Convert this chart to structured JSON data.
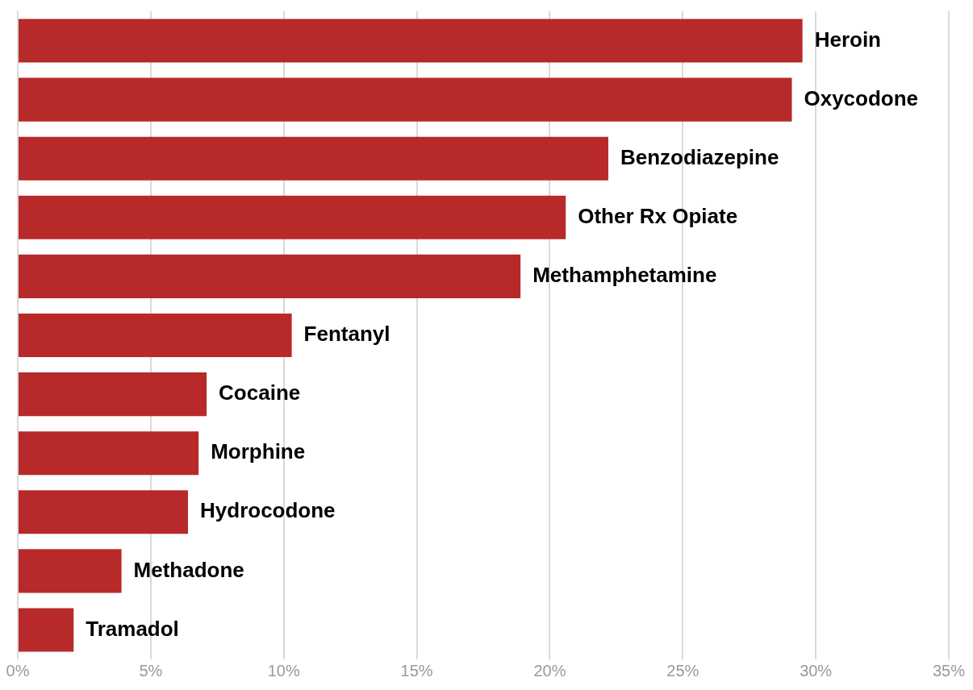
{
  "chart_data": {
    "type": "bar",
    "orientation": "horizontal",
    "categories": [
      "Heroin",
      "Oxycodone",
      "Benzodiazepine",
      "Other Rx Opiate",
      "Methamphetamine",
      "Fentanyl",
      "Cocaine",
      "Morphine",
      "Hydrocodone",
      "Methadone",
      "Tramadol"
    ],
    "values": [
      29.5,
      29.1,
      22.2,
      20.6,
      18.9,
      10.3,
      7.1,
      6.8,
      6.4,
      3.9,
      2.1
    ],
    "color": "#b8292a",
    "xlim": [
      0,
      35
    ],
    "xticks": [
      {
        "value": 0,
        "label": "0%"
      },
      {
        "value": 5,
        "label": "5%"
      },
      {
        "value": 10,
        "label": "10%"
      },
      {
        "value": 15,
        "label": "15%"
      },
      {
        "value": 20,
        "label": "20%"
      },
      {
        "value": 25,
        "label": "25%"
      },
      {
        "value": 30,
        "label": "30%"
      },
      {
        "value": 35,
        "label": "35%"
      }
    ],
    "grid": "x",
    "tick_labels": "x",
    "legend": false
  }
}
